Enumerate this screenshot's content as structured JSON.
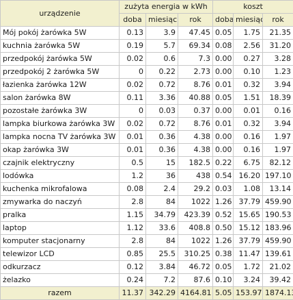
{
  "headers": {
    "device": "urządzenie",
    "energy_group": "zużyta energia w kWh",
    "cost_group": "koszt",
    "day": "doba",
    "month": "miesiąc",
    "year": "rok"
  },
  "rows": [
    {
      "name": "Mój pokój żarówka 5W",
      "e_day": "0.13",
      "e_month": "3.9",
      "e_year": "47.45",
      "c_day": "0.05",
      "c_month": "1.75",
      "c_year": "21.35"
    },
    {
      "name": "kuchnia żarówka 5W",
      "e_day": "0.19",
      "e_month": "5.7",
      "e_year": "69.34",
      "c_day": "0.08",
      "c_month": "2.56",
      "c_year": "31.20"
    },
    {
      "name": "przedpokój żarówka 5W",
      "e_day": "0.02",
      "e_month": "0.6",
      "e_year": "7.3",
      "c_day": "0.00",
      "c_month": "0.27",
      "c_year": "3.28"
    },
    {
      "name": "przedpokój 2 żarówka 5W",
      "e_day": "0",
      "e_month": "0.22",
      "e_year": "2.73",
      "c_day": "0.00",
      "c_month": "0.10",
      "c_year": "1.23"
    },
    {
      "name": "łazienka żarówka 12W",
      "e_day": "0.02",
      "e_month": "0.72",
      "e_year": "8.76",
      "c_day": "0.01",
      "c_month": "0.32",
      "c_year": "3.94"
    },
    {
      "name": "salon żarówka 8W",
      "e_day": "0.11",
      "e_month": "3.36",
      "e_year": "40.88",
      "c_day": "0.05",
      "c_month": "1.51",
      "c_year": "18.39"
    },
    {
      "name": "pozostałe żarówka 3W",
      "e_day": "0",
      "e_month": "0.03",
      "e_year": "0.37",
      "c_day": "0.00",
      "c_month": "0.01",
      "c_year": "0.16"
    },
    {
      "name": "lampka biurkowa żarówka 3W",
      "e_day": "0.02",
      "e_month": "0.72",
      "e_year": "8.76",
      "c_day": "0.01",
      "c_month": "0.32",
      "c_year": "3.94"
    },
    {
      "name": "lampka nocna TV żarówka 3W",
      "e_day": "0.01",
      "e_month": "0.36",
      "e_year": "4.38",
      "c_day": "0.00",
      "c_month": "0.16",
      "c_year": "1.97"
    },
    {
      "name": "okap żarówka 3W",
      "e_day": "0.01",
      "e_month": "0.36",
      "e_year": "4.38",
      "c_day": "0.00",
      "c_month": "0.16",
      "c_year": "1.97"
    },
    {
      "name": "czajnik elektryczny",
      "e_day": "0.5",
      "e_month": "15",
      "e_year": "182.5",
      "c_day": "0.22",
      "c_month": "6.75",
      "c_year": "82.12"
    },
    {
      "name": "lodówka",
      "e_day": "1.2",
      "e_month": "36",
      "e_year": "438",
      "c_day": "0.54",
      "c_month": "16.20",
      "c_year": "197.10"
    },
    {
      "name": "kuchenka mikrofalowa",
      "e_day": "0.08",
      "e_month": "2.4",
      "e_year": "29.2",
      "c_day": "0.03",
      "c_month": "1.08",
      "c_year": "13.14"
    },
    {
      "name": "zmywarka do naczyń",
      "e_day": "2.8",
      "e_month": "84",
      "e_year": "1022",
      "c_day": "1.26",
      "c_month": "37.79",
      "c_year": "459.90"
    },
    {
      "name": "pralka",
      "e_day": "1.15",
      "e_month": "34.79",
      "e_year": "423.39",
      "c_day": "0.52",
      "c_month": "15.65",
      "c_year": "190.53"
    },
    {
      "name": "laptop",
      "e_day": "1.12",
      "e_month": "33.6",
      "e_year": "408.8",
      "c_day": "0.50",
      "c_month": "15.12",
      "c_year": "183.96"
    },
    {
      "name": "komputer stacjonarny",
      "e_day": "2.8",
      "e_month": "84",
      "e_year": "1022",
      "c_day": "1.26",
      "c_month": "37.79",
      "c_year": "459.90"
    },
    {
      "name": "telewizor LCD",
      "e_day": "0.85",
      "e_month": "25.5",
      "e_year": "310.25",
      "c_day": "0.38",
      "c_month": "11.47",
      "c_year": "139.61"
    },
    {
      "name": "odkurzacz",
      "e_day": "0.12",
      "e_month": "3.84",
      "e_year": "46.72",
      "c_day": "0.05",
      "c_month": "1.72",
      "c_year": "21.02"
    },
    {
      "name": "żelazko",
      "e_day": "0.24",
      "e_month": "7.2",
      "e_year": "87.6",
      "c_day": "0.10",
      "c_month": "3.24",
      "c_year": "39.42"
    }
  ],
  "totals": {
    "label": "razem",
    "e_day": "11.37",
    "e_month": "342.29",
    "e_year": "4164.81",
    "c_day": "5.05",
    "c_month": "153.97",
    "c_year": "1874.13"
  }
}
